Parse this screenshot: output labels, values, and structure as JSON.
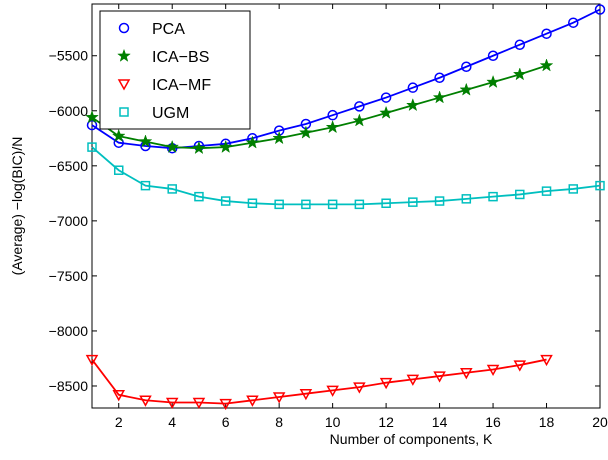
{
  "chart_data": {
    "type": "line",
    "xlabel": "Number of components, K",
    "ylabel": "(Average) −log(BIC)/N",
    "x": [
      1,
      2,
      3,
      4,
      5,
      6,
      7,
      8,
      9,
      10,
      11,
      12,
      13,
      14,
      15,
      16,
      17,
      18,
      19,
      20
    ],
    "xlim": [
      1,
      20
    ],
    "xticks": [
      2,
      4,
      6,
      8,
      10,
      12,
      14,
      16,
      18,
      20
    ],
    "ylim": [
      -8700,
      -5030
    ],
    "yticks": [
      {
        "value": -5500,
        "label": "−5500"
      },
      {
        "value": -6000,
        "label": "−6000"
      },
      {
        "value": -6500,
        "label": "−6500"
      },
      {
        "value": -7000,
        "label": "−7000"
      },
      {
        "value": -7500,
        "label": "−7500"
      },
      {
        "value": -8000,
        "label": "−8000"
      },
      {
        "value": -8500,
        "label": "−8500"
      }
    ],
    "legend": "upper-left",
    "series": [
      {
        "name": "PCA",
        "color": "#0000ff",
        "marker": "circle",
        "values": [
          -6130,
          -6290,
          -6320,
          -6340,
          -6320,
          -6300,
          -6250,
          -6180,
          -6120,
          -6040,
          -5960,
          -5880,
          -5790,
          -5700,
          -5600,
          -5500,
          -5400,
          -5300,
          -5200,
          -5080
        ]
      },
      {
        "name": "ICA−BS",
        "color": "#007f00",
        "marker": "star",
        "values": [
          -6060,
          -6230,
          -6280,
          -6330,
          -6340,
          -6330,
          -6290,
          -6250,
          -6200,
          -6150,
          -6090,
          -6020,
          -5950,
          -5880,
          -5810,
          -5740,
          -5670,
          -5590,
          null,
          null
        ]
      },
      {
        "name": "ICA−MF",
        "color": "#ff0000",
        "marker": "triangle-down",
        "values": [
          -8260,
          -8580,
          -8630,
          -8650,
          -8650,
          -8660,
          -8630,
          -8600,
          -8570,
          -8540,
          -8510,
          -8470,
          -8440,
          -8410,
          -8380,
          -8350,
          -8310,
          -8260,
          null,
          null
        ]
      },
      {
        "name": "UGM",
        "color": "#00bfbf",
        "marker": "square",
        "values": [
          -6330,
          -6540,
          -6680,
          -6710,
          -6780,
          -6820,
          -6840,
          -6850,
          -6850,
          -6850,
          -6850,
          -6840,
          -6830,
          -6820,
          -6800,
          -6780,
          -6760,
          -6730,
          -6710,
          -6680
        ]
      }
    ]
  }
}
